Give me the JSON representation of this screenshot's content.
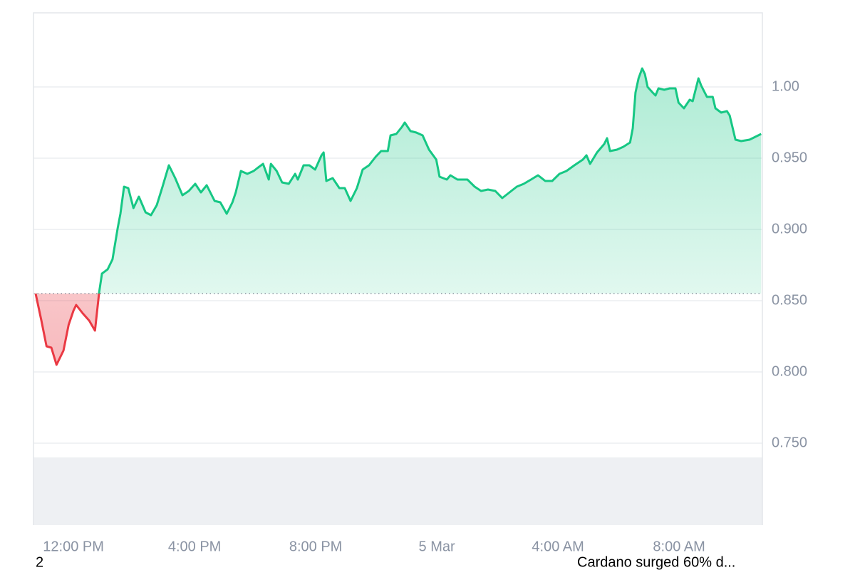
{
  "chart_data": {
    "type": "line",
    "x": [
      10.75,
      10.94,
      11.11,
      11.27,
      11.44,
      11.67,
      11.84,
      12.0,
      12.09,
      12.31,
      12.52,
      12.71,
      12.85,
      12.94,
      13.13,
      13.29,
      13.46,
      13.55,
      13.67,
      13.81,
      13.98,
      14.16,
      14.38,
      14.56,
      14.75,
      14.94,
      15.15,
      15.36,
      15.6,
      15.81,
      16.02,
      16.21,
      16.4,
      16.66,
      16.85,
      17.06,
      17.25,
      17.36,
      17.53,
      17.74,
      17.95,
      18.07,
      18.26,
      18.45,
      18.52,
      18.71,
      18.89,
      19.11,
      19.32,
      19.41,
      19.6,
      19.79,
      19.98,
      20.19,
      20.26,
      20.35,
      20.56,
      20.78,
      20.96,
      21.15,
      21.36,
      21.55,
      21.76,
      21.98,
      22.16,
      22.38,
      22.47,
      22.66,
      22.85,
      22.94,
      23.13,
      23.32,
      23.53,
      23.74,
      23.98,
      24.09,
      24.33,
      24.45,
      24.68,
      25.01,
      25.25,
      25.46,
      25.69,
      25.93,
      26.16,
      26.4,
      26.64,
      26.87,
      27.11,
      27.34,
      27.58,
      27.81,
      28.05,
      28.28,
      28.54,
      28.82,
      28.94,
      29.06,
      29.29,
      29.53,
      29.62,
      29.72,
      29.95,
      30.16,
      30.38,
      30.47,
      30.56,
      30.66,
      30.78,
      30.87,
      30.96,
      31.13,
      31.22,
      31.32,
      31.51,
      31.69,
      31.88,
      31.98,
      32.16,
      32.35,
      32.45,
      32.64,
      32.73,
      32.92,
      33.11,
      33.2,
      33.39,
      33.58,
      33.67,
      33.86,
      34.05,
      34.33,
      34.52,
      34.71
    ],
    "series": [
      {
        "values": [
          0.855,
          0.836,
          0.818,
          0.817,
          0.805,
          0.815,
          0.833,
          0.843,
          0.847,
          0.841,
          0.836,
          0.829,
          0.856,
          0.869,
          0.872,
          0.879,
          0.901,
          0.911,
          0.93,
          0.929,
          0.915,
          0.923,
          0.912,
          0.91,
          0.917,
          0.93,
          0.945,
          0.936,
          0.924,
          0.927,
          0.932,
          0.926,
          0.931,
          0.92,
          0.919,
          0.911,
          0.919,
          0.926,
          0.941,
          0.939,
          0.941,
          0.943,
          0.946,
          0.935,
          0.946,
          0.941,
          0.933,
          0.932,
          0.939,
          0.935,
          0.945,
          0.945,
          0.942,
          0.952,
          0.954,
          0.934,
          0.936,
          0.929,
          0.929,
          0.92,
          0.929,
          0.942,
          0.945,
          0.951,
          0.955,
          0.955,
          0.966,
          0.967,
          0.972,
          0.975,
          0.969,
          0.968,
          0.966,
          0.956,
          0.949,
          0.937,
          0.935,
          0.938,
          0.935,
          0.935,
          0.93,
          0.927,
          0.928,
          0.927,
          0.922,
          0.926,
          0.93,
          0.932,
          0.935,
          0.938,
          0.934,
          0.934,
          0.939,
          0.941,
          0.945,
          0.949,
          0.952,
          0.946,
          0.954,
          0.96,
          0.964,
          0.955,
          0.956,
          0.958,
          0.961,
          0.971,
          0.996,
          1.006,
          1.013,
          1.009,
          1.0,
          0.996,
          0.994,
          0.999,
          0.998,
          0.999,
          0.999,
          0.989,
          0.985,
          0.991,
          0.99,
          1.006,
          1.001,
          0.993,
          0.993,
          0.985,
          0.982,
          0.983,
          0.98,
          0.963,
          0.962,
          0.963,
          0.965,
          0.967
        ],
        "color": "#16c784",
        "color_below": "#ea3943"
      }
    ],
    "baseline": 0.855,
    "xlim": [
      10.68,
      34.75
    ],
    "xticks": [
      {
        "value": 12,
        "label": "12:00 PM"
      },
      {
        "value": 16,
        "label": "4:00 PM"
      },
      {
        "value": 20,
        "label": "8:00 PM"
      },
      {
        "value": 24,
        "label": "5 Mar"
      },
      {
        "value": 28,
        "label": "4:00 AM"
      },
      {
        "value": 32,
        "label": "8:00 AM"
      }
    ],
    "ylim": [
      0.6925,
      1.052
    ],
    "yticks": [
      {
        "value": 0.75,
        "label": "0.750"
      },
      {
        "value": 0.8,
        "label": "0.800"
      },
      {
        "value": 0.85,
        "label": "0.850"
      },
      {
        "value": 0.9,
        "label": "0.900"
      },
      {
        "value": 0.95,
        "label": "0.950"
      },
      {
        "value": 1,
        "label": "1.00"
      }
    ],
    "grid": true
  },
  "footer": {
    "left": "2",
    "right": "Cardano surged 60% d..."
  }
}
